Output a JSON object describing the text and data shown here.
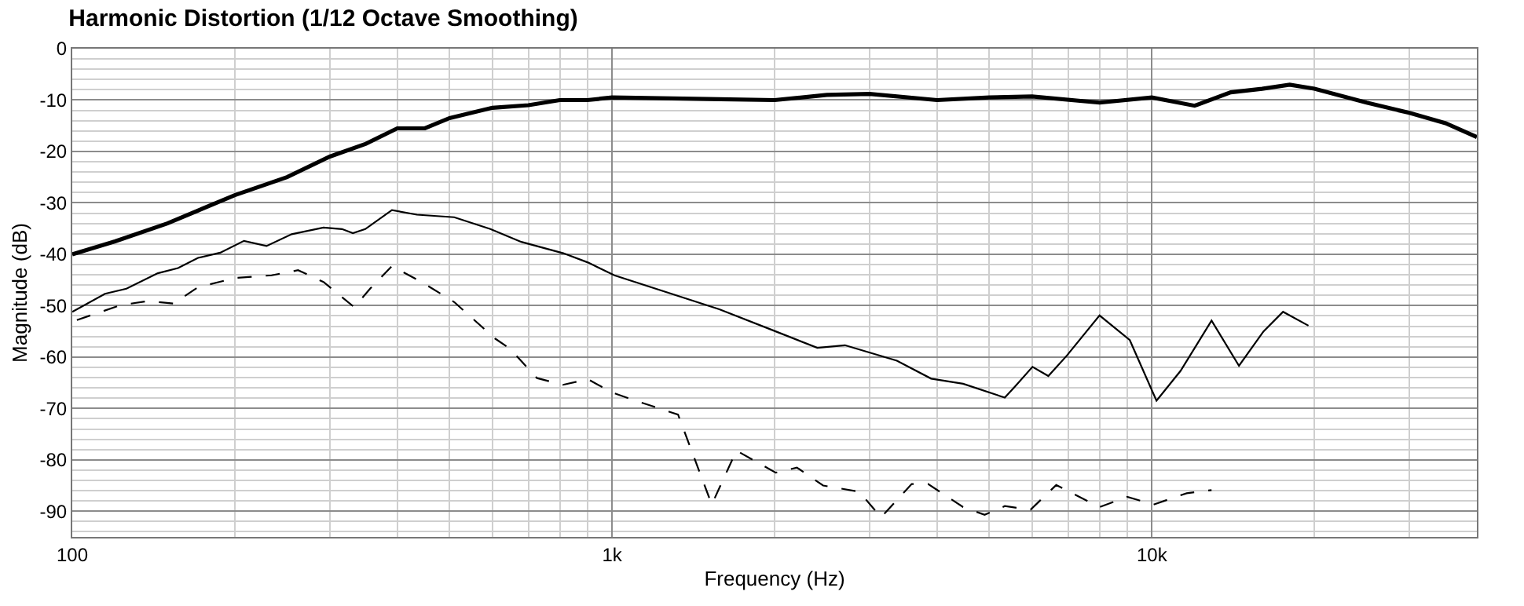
{
  "chart_data": {
    "type": "line",
    "title": "Harmonic Distortion (1/12 Octave Smoothing)",
    "xlabel": "Frequency (Hz)",
    "ylabel": "Magnitude (dB)",
    "log": "x",
    "grid": true,
    "marker": "none",
    "xlim": [
      100,
      40000
    ],
    "ylim": [
      -95,
      0
    ],
    "xticks": [
      100,
      {
        "value": 200,
        "label": null
      },
      {
        "value": 300,
        "label": null
      },
      {
        "value": 400,
        "label": null
      },
      {
        "value": 500,
        "label": null
      },
      {
        "value": 600,
        "label": null
      },
      {
        "value": 700,
        "label": null
      },
      {
        "value": 800,
        "label": null
      },
      {
        "value": 900,
        "label": null
      },
      {
        "value": 1000,
        "label": "1k"
      },
      {
        "value": 2000,
        "label": null
      },
      {
        "value": 3000,
        "label": null
      },
      {
        "value": 4000,
        "label": null
      },
      {
        "value": 5000,
        "label": null
      },
      {
        "value": 6000,
        "label": null
      },
      {
        "value": 7000,
        "label": null
      },
      {
        "value": 8000,
        "label": null
      },
      {
        "value": 9000,
        "label": null
      },
      {
        "value": 10000,
        "label": "10k"
      },
      {
        "value": 20000,
        "label": null
      },
      {
        "value": 30000,
        "label": null
      }
    ],
    "yticks": [
      0,
      -10,
      -20,
      -30,
      -40,
      -50,
      -60,
      -70,
      -80,
      -90,
      {
        "value": -2,
        "label": null
      },
      {
        "value": -4,
        "label": null
      },
      {
        "value": -6,
        "label": null
      },
      {
        "value": -8,
        "label": null
      },
      {
        "value": -12,
        "label": null
      },
      {
        "value": -14,
        "label": null
      },
      {
        "value": -16,
        "label": null
      },
      {
        "value": -18,
        "label": null
      },
      {
        "value": -22,
        "label": null
      },
      {
        "value": -24,
        "label": null
      },
      {
        "value": -26,
        "label": null
      },
      {
        "value": -28,
        "label": null
      },
      {
        "value": -32,
        "label": null
      },
      {
        "value": -34,
        "label": null
      },
      {
        "value": -36,
        "label": null
      },
      {
        "value": -38,
        "label": null
      },
      {
        "value": -42,
        "label": null
      },
      {
        "value": -44,
        "label": null
      },
      {
        "value": -46,
        "label": null
      },
      {
        "value": -48,
        "label": null
      },
      {
        "value": -52,
        "label": null
      },
      {
        "value": -54,
        "label": null
      },
      {
        "value": -56,
        "label": null
      },
      {
        "value": -58,
        "label": null
      },
      {
        "value": -62,
        "label": null
      },
      {
        "value": -64,
        "label": null
      },
      {
        "value": -66,
        "label": null
      },
      {
        "value": -68,
        "label": null
      },
      {
        "value": -72,
        "label": null
      },
      {
        "value": -74,
        "label": null
      },
      {
        "value": -76,
        "label": null
      },
      {
        "value": -78,
        "label": null
      },
      {
        "value": -82,
        "label": null
      },
      {
        "value": -84,
        "label": null
      },
      {
        "value": -86,
        "label": null
      },
      {
        "value": -88,
        "label": null
      },
      {
        "value": -92,
        "label": null
      },
      {
        "value": -94,
        "label": null
      }
    ],
    "series": [
      {
        "color": "#000000",
        "line_style": "solid",
        "x": [
          100,
          120,
          150,
          200,
          250,
          300,
          350,
          400,
          450,
          500,
          600,
          700,
          800,
          900,
          1000,
          1500,
          2000,
          2500,
          3000,
          4000,
          5000,
          6000,
          8000,
          10000,
          12000,
          14000,
          16000,
          18000,
          20000,
          25000,
          30000,
          35000,
          40000
        ],
        "values": [
          -40,
          -37.5,
          -34,
          -28.5,
          -25,
          -21,
          -18.5,
          -15.5,
          -15.5,
          -13.5,
          -11.5,
          -11,
          -10,
          -10,
          -9.5,
          -9.8,
          -10,
          -9,
          -8.8,
          -10,
          -9.5,
          -9.3,
          -10.5,
          -9.5,
          -11.1,
          -8.5,
          -7.8,
          -7,
          -7.8,
          -10.5,
          -12.5,
          -14.5,
          -17.2
        ]
      },
      {
        "color": "#000000",
        "line_style": "solid",
        "x": [
          100,
          115,
          126,
          144,
          157,
          171,
          188,
          208,
          229,
          255,
          292,
          316,
          331,
          349,
          391,
          435,
          510,
          595,
          679,
          812,
          902,
          1010,
          1580,
          1975,
          2400,
          2700,
          3370,
          3900,
          4470,
          5340,
          5580,
          6010,
          6430,
          6960,
          8000,
          9100,
          10200,
          11300,
          12900,
          14500,
          16100,
          17500,
          19500
        ],
        "values": [
          -51.2,
          -47.7,
          -46.7,
          -43.7,
          -42.7,
          -40.7,
          -39.7,
          -37.4,
          -38.4,
          -36.1,
          -34.8,
          -35.1,
          -35.9,
          -35.1,
          -31.4,
          -32.3,
          -32.8,
          -35.1,
          -37.6,
          -39.8,
          -41.6,
          -44.1,
          -50.7,
          -54.7,
          -58.2,
          -57.7,
          -60.7,
          -64.2,
          -65.2,
          -67.9,
          -65.7,
          -61.9,
          -63.7,
          -59.7,
          -51.9,
          -56.7,
          -68.5,
          -62.7,
          -52.9,
          -61.7,
          -55,
          -51.2,
          -53.9
        ]
      },
      {
        "color": "#000000",
        "line_style": "dashed",
        "x": [
          102,
          123,
          138,
          154,
          171,
          201,
          234,
          262,
          292,
          333,
          357,
          391,
          447,
          510,
          607,
          647,
          726,
          811,
          902,
          1000,
          1085,
          1325,
          1530,
          1700,
          2010,
          2200,
          2460,
          2870,
          3150,
          3590,
          3850,
          4470,
          4900,
          5340,
          5960,
          6650,
          8000,
          9000,
          10070,
          11600,
          12900
        ],
        "values": [
          -52.8,
          -49.9,
          -49.1,
          -49.6,
          -46.4,
          -44.6,
          -44.1,
          -43.1,
          -45.4,
          -50.3,
          -46.6,
          -42.3,
          -45.6,
          -49.3,
          -56.4,
          -58.4,
          -64.1,
          -65.4,
          -64.3,
          -66.9,
          -68.2,
          -71.2,
          -88.7,
          -78.2,
          -82.5,
          -81.5,
          -85,
          -86.2,
          -91.2,
          -84.7,
          -84.7,
          -89.2,
          -90.7,
          -89,
          -89.7,
          -84.9,
          -89.2,
          -87.2,
          -88.7,
          -86.5,
          -85.9
        ]
      }
    ]
  }
}
